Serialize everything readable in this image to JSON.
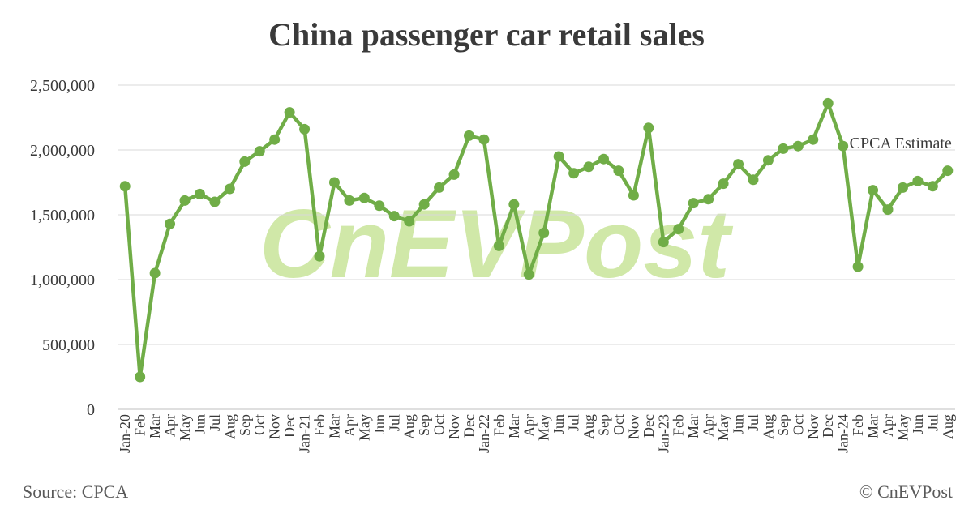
{
  "chart_data": {
    "type": "line",
    "title": "China passenger car retail sales",
    "xlabel": "",
    "ylabel": "",
    "ylim": [
      0,
      2500000
    ],
    "yticks": [
      0,
      500000,
      1000000,
      1500000,
      2000000,
      2500000
    ],
    "ytick_labels": [
      "0",
      "500,000",
      "1,000,000",
      "1,500,000",
      "2,000,000",
      "2,500,000"
    ],
    "grid": true,
    "line_color": "#70ad47",
    "categories": [
      "Jan-20",
      "Feb",
      "Mar",
      "Apr",
      "May",
      "Jun",
      "Jul",
      "Aug",
      "Sep",
      "Oct",
      "Nov",
      "Dec",
      "Jan-21",
      "Feb",
      "Mar",
      "Apr",
      "May",
      "Jun",
      "Jul",
      "Aug",
      "Sep",
      "Oct",
      "Nov",
      "Dec",
      "Jan-22",
      "Feb",
      "Mar",
      "Apr",
      "May",
      "Jun",
      "Jul",
      "Aug",
      "Sep",
      "Oct",
      "Nov",
      "Dec",
      "Jan-23",
      "Feb",
      "Mar",
      "Apr",
      "May",
      "Jun",
      "Jul",
      "Aug",
      "Sep",
      "Oct",
      "Nov",
      "Dec",
      "Jan-24",
      "Feb",
      "Mar",
      "Apr",
      "May",
      "Jun",
      "Jul",
      "Aug"
    ],
    "values": [
      1720000,
      250000,
      1050000,
      1430000,
      1610000,
      1660000,
      1600000,
      1700000,
      1910000,
      1990000,
      2080000,
      2290000,
      2160000,
      1180000,
      1750000,
      1610000,
      1630000,
      1570000,
      1490000,
      1450000,
      1580000,
      1710000,
      1810000,
      2110000,
      2080000,
      1260000,
      1580000,
      1040000,
      1360000,
      1950000,
      1820000,
      1870000,
      1930000,
      1840000,
      1650000,
      2170000,
      1290000,
      1390000,
      1590000,
      1620000,
      1740000,
      1890000,
      1770000,
      1920000,
      2010000,
      2030000,
      2080000,
      2360000,
      2030000,
      1100000,
      1690000,
      1540000,
      1710000,
      1760000,
      1720000,
      1840000
    ],
    "annotation": {
      "text": "CPCA Estimate",
      "category_index": 48
    }
  },
  "watermark": "CnEVPost",
  "footer": {
    "source": "Source: CPCA",
    "copyright": "© CnEVPost"
  }
}
